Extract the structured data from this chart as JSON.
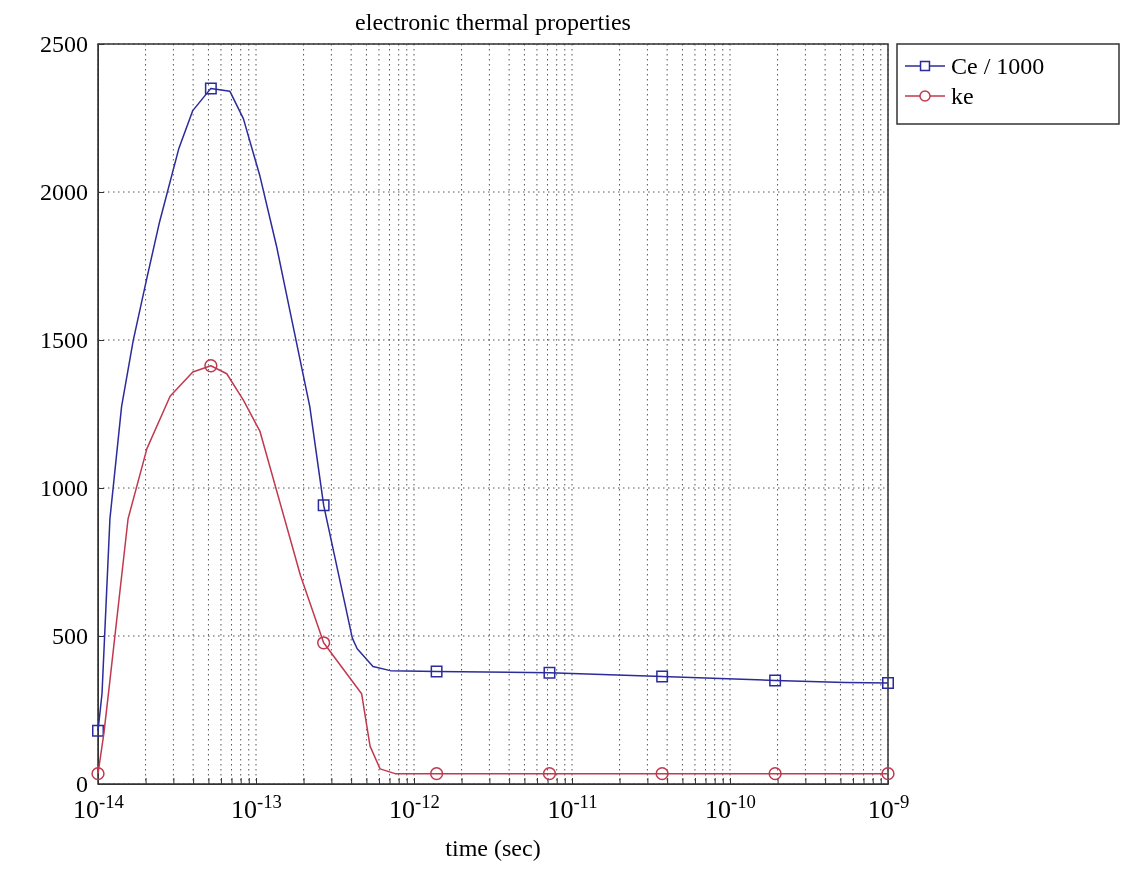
{
  "chart_data": {
    "type": "line",
    "title": "electronic thermal properties",
    "xlabel": "time (sec)",
    "log": "x",
    "xlim": [
      1e-14,
      1e-09
    ],
    "ylim": [
      0,
      2500
    ],
    "xticks": [
      {
        "value": 1e-14,
        "label": "10$^{-14}$"
      },
      {
        "value": 2e-14,
        "label": null
      },
      {
        "value": 3e-14,
        "label": null
      },
      {
        "value": 4e-14,
        "label": null
      },
      {
        "value": 5e-14,
        "label": null
      },
      {
        "value": 6e-14,
        "label": null
      },
      {
        "value": 7e-14,
        "label": null
      },
      {
        "value": 8e-14,
        "label": null
      },
      {
        "value": 9e-14,
        "label": null
      },
      {
        "value": 1e-13,
        "label": "10$^{-13}$"
      },
      {
        "value": 2e-13,
        "label": null
      },
      {
        "value": 3e-13,
        "label": null
      },
      {
        "value": 4e-13,
        "label": null
      },
      {
        "value": 5e-13,
        "label": null
      },
      {
        "value": 6e-13,
        "label": null
      },
      {
        "value": 7e-13,
        "label": null
      },
      {
        "value": 8e-13,
        "label": null
      },
      {
        "value": 9e-13,
        "label": null
      },
      {
        "value": 1e-12,
        "label": "10$^{-12}$"
      },
      {
        "value": 2e-12,
        "label": null
      },
      {
        "value": 3e-12,
        "label": null
      },
      {
        "value": 4e-12,
        "label": null
      },
      {
        "value": 5e-12,
        "label": null
      },
      {
        "value": 6e-12,
        "label": null
      },
      {
        "value": 7e-12,
        "label": null
      },
      {
        "value": 8e-12,
        "label": null
      },
      {
        "value": 9e-12,
        "label": null
      },
      {
        "value": 1e-11,
        "label": "10$^{-11}$"
      },
      {
        "value": 2e-11,
        "label": null
      },
      {
        "value": 3e-11,
        "label": null
      },
      {
        "value": 4e-11,
        "label": null
      },
      {
        "value": 5e-11,
        "label": null
      },
      {
        "value": 6e-11,
        "label": null
      },
      {
        "value": 7e-11,
        "label": null
      },
      {
        "value": 8e-11,
        "label": null
      },
      {
        "value": 9e-11,
        "label": null
      },
      {
        "value": 1e-10,
        "label": "10$^{-10}$"
      },
      {
        "value": 2e-10,
        "label": null
      },
      {
        "value": 3e-10,
        "label": null
      },
      {
        "value": 4e-10,
        "label": null
      },
      {
        "value": 5e-10,
        "label": null
      },
      {
        "value": 6e-10,
        "label": null
      },
      {
        "value": 7e-10,
        "label": null
      },
      {
        "value": 8e-10,
        "label": null
      },
      {
        "value": 9e-10,
        "label": null
      },
      {
        "value": 1e-09,
        "label": "10$^{-9}$"
      }
    ],
    "yticks": [
      0,
      500,
      1000,
      1500,
      2000,
      2500
    ],
    "grid": true,
    "legend": "top right",
    "line_style": "solid",
    "series": [
      {
        "name": "Ce / 1000",
        "type": "line",
        "color": "#2b2b9c",
        "x": [
          1e-14,
          1.06e-14,
          1.19e-14,
          1.41e-14,
          1.67e-14,
          2.04e-14,
          2.45e-14,
          3.24e-14,
          3.98e-14,
          5.18e-14,
          6.84e-14,
          8.32e-14,
          1.06e-13,
          1.35e-13,
          1.7e-13,
          2.19e-13,
          2.68e-13,
          4.07e-13,
          4.37e-13,
          5.5e-13,
          7.08e-13,
          1.39e-12,
          7.2e-12,
          3.72e-11,
          1.93e-10,
          5.37e-10,
          1e-09
        ],
        "values": [
          180,
          305,
          896,
          1275,
          1498,
          1710,
          1898,
          2145,
          2275,
          2350,
          2340,
          2248,
          2053,
          1816,
          1558,
          1275,
          942,
          493,
          457,
          397,
          383,
          380,
          376,
          363,
          350,
          343,
          341
        ]
      },
      {
        "type": "scatter",
        "marker": "square",
        "color": "#2b2b9c",
        "x": [
          1e-14,
          5.18e-14,
          2.68e-13,
          1.39e-12,
          7.2e-12,
          3.72e-11,
          1.93e-10,
          1e-09
        ],
        "values": [
          180,
          2350,
          942,
          380,
          376,
          363,
          350,
          341
        ]
      },
      {
        "name": "ke",
        "type": "line",
        "color": "#c0394f",
        "x": [
          1e-14,
          1.09e-14,
          1.19e-14,
          1.55e-14,
          2.04e-14,
          2.86e-14,
          3.98e-14,
          5.18e-14,
          6.53e-14,
          8.32e-14,
          1.06e-13,
          1.91e-13,
          2.68e-13,
          4.66e-13,
          5.27e-13,
          6.1e-13,
          7.59e-13,
          1.39e-12,
          7.2e-12,
          3.72e-11,
          1.93e-10,
          1e-09
        ],
        "values": [
          35,
          172,
          350,
          896,
          1133,
          1310,
          1392,
          1413,
          1386,
          1297,
          1191,
          705,
          477,
          305,
          128,
          51,
          35,
          35,
          35,
          35,
          35,
          35
        ]
      },
      {
        "type": "scatter",
        "marker": "circle",
        "color": "#c0394f",
        "x": [
          1e-14,
          5.18e-14,
          2.68e-13,
          1.39e-12,
          7.2e-12,
          3.72e-11,
          1.93e-10,
          1e-09
        ],
        "values": [
          35,
          1413,
          477,
          35,
          35,
          35,
          35,
          35
        ]
      }
    ]
  }
}
